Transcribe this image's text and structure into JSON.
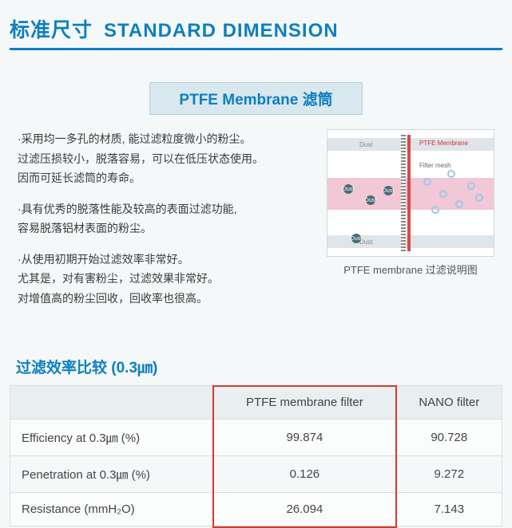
{
  "header": {
    "title_zh": "标准尺寸",
    "title_en": "STANDARD DIMENSION"
  },
  "sub_banner": "PTFE Membrane 滤筒",
  "bullets": [
    "·采用均一多孔的材质, 能过滤粒度微小的粉尘。\n过滤压损较小，脱落容易，可以在低压状态使用。\n因而可延长滤筒的寿命。",
    "·具有优秀的脱落性能及较高的表面过滤功能,\n容易脱落铝材表面的粉尘。",
    "·从使用初期开始过滤效率非常好。\n尤其是，对有害粉尘，过滤效果非常好。\n对增值高的粉尘回收，回收率也很高。"
  ],
  "diagram": {
    "label_dust_top": "Dust",
    "label_dust_bot": "Dust",
    "label_membrane": "PTFE Membrane",
    "label_mesh": "Filter mesh",
    "caption": "PTFE membrane 过滤说明图"
  },
  "comparison": {
    "title": "过滤效率比较 (0.3㎛)",
    "columns": [
      "",
      "PTFE membrane filter",
      "NANO filter"
    ],
    "rows": [
      {
        "label": "Efficiency at 0.3㎛ (%)",
        "ptfe": "99.874",
        "nano": "90.728"
      },
      {
        "label": "Penetration at 0.3㎛ (%)",
        "ptfe": "0.126",
        "nano": "9.272"
      },
      {
        "label": "Resistance (mmH₂O)",
        "ptfe": "26.094",
        "nano": "7.143"
      }
    ],
    "highlight_column_index": 1
  },
  "colors": {
    "brand_blue": "#0d7fc0",
    "banner_bg": "#d9e7ef",
    "page_bg": "#f5f8f9",
    "highlight_red": "#d33a2f"
  }
}
